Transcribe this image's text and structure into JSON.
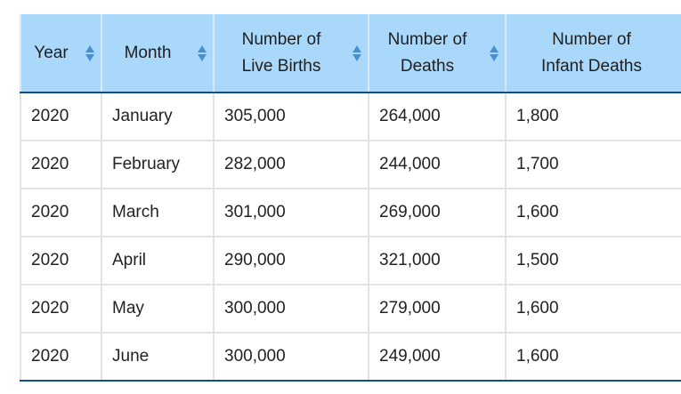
{
  "table": {
    "headers": [
      "Year",
      "Month",
      "Number of\nLive Births",
      "Number of\nDeaths",
      "Number of\nInfant Deaths"
    ],
    "rows": [
      [
        "2020",
        "January",
        "305,000",
        "264,000",
        "1,800"
      ],
      [
        "2020",
        "February",
        "282,000",
        "244,000",
        "1,700"
      ],
      [
        "2020",
        "March",
        "301,000",
        "269,000",
        "1,600"
      ],
      [
        "2020",
        "April",
        "290,000",
        "321,000",
        "1,500"
      ],
      [
        "2020",
        "May",
        "300,000",
        "279,000",
        "1,600"
      ],
      [
        "2020",
        "June",
        "300,000",
        "249,000",
        "1,600"
      ]
    ]
  },
  "icons": {
    "sort": "sort-updown-icon"
  },
  "colors": {
    "header_bg": "#aad8fb",
    "sort_icon": "#4a8fd1",
    "header_border": "#0e4f8c",
    "grid": "#e3e3e3"
  }
}
